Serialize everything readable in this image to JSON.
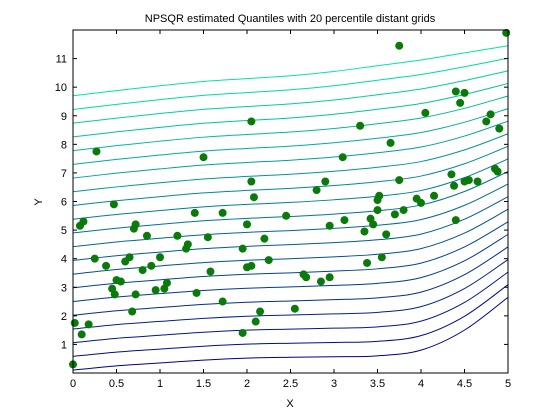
{
  "chart_data": {
    "type": "scatter",
    "title": "NPSQR estimated Quantiles with 20 percentile distant grids",
    "xlabel": "X",
    "ylabel": "Y",
    "xlim": [
      0,
      5
    ],
    "ylim": [
      0,
      12
    ],
    "xticks": [
      "0",
      "0.5",
      "1",
      "1.5",
      "2",
      "2.5",
      "3",
      "3.5",
      "4",
      "4.5",
      "5"
    ],
    "yticks": [
      "1",
      "2",
      "3",
      "4",
      "5",
      "6",
      "7",
      "8",
      "9",
      "10",
      "11"
    ],
    "grid": false,
    "legend": "none",
    "colors": {
      "points": "#0a7a0a",
      "quantile_low": "#00008b",
      "quantile_high": "#00e6a0",
      "axes": "#000000"
    },
    "quantile_curves": {
      "count": 21,
      "description_levels": "0.05 to 0.95 quantile grid",
      "x": [
        0,
        0.5,
        1,
        1.5,
        2,
        2.5,
        3,
        3.5,
        4,
        4.5,
        5
      ],
      "lowest": [
        0.1,
        0.25,
        0.35,
        0.45,
        0.52,
        0.55,
        0.57,
        0.6,
        0.8,
        1.5,
        2.65
      ],
      "highest": [
        9.7,
        9.88,
        10.05,
        10.2,
        10.3,
        10.4,
        10.55,
        10.75,
        10.95,
        11.2,
        11.45
      ]
    },
    "points": [
      [
        0.0,
        0.3
      ],
      [
        0.02,
        1.75
      ],
      [
        0.1,
        1.35
      ],
      [
        0.18,
        1.7
      ],
      [
        0.25,
        4.0
      ],
      [
        0.27,
        7.75
      ],
      [
        0.08,
        5.15
      ],
      [
        0.12,
        5.3
      ],
      [
        0.38,
        3.75
      ],
      [
        0.45,
        2.95
      ],
      [
        0.48,
        2.75
      ],
      [
        0.5,
        3.25
      ],
      [
        0.55,
        3.2
      ],
      [
        0.47,
        5.9
      ],
      [
        0.6,
        3.9
      ],
      [
        0.65,
        4.05
      ],
      [
        0.68,
        2.15
      ],
      [
        0.7,
        5.05
      ],
      [
        0.72,
        5.2
      ],
      [
        0.72,
        2.75
      ],
      [
        0.8,
        3.6
      ],
      [
        0.85,
        4.8
      ],
      [
        0.9,
        3.75
      ],
      [
        0.95,
        2.9
      ],
      [
        1.0,
        4.05
      ],
      [
        1.05,
        2.95
      ],
      [
        1.08,
        3.15
      ],
      [
        1.2,
        4.8
      ],
      [
        1.3,
        4.35
      ],
      [
        1.32,
        4.5
      ],
      [
        1.4,
        5.6
      ],
      [
        1.42,
        2.8
      ],
      [
        1.5,
        7.55
      ],
      [
        1.55,
        4.75
      ],
      [
        1.58,
        3.55
      ],
      [
        1.72,
        2.5
      ],
      [
        1.72,
        5.6
      ],
      [
        1.95,
        1.4
      ],
      [
        1.95,
        4.35
      ],
      [
        2.0,
        5.2
      ],
      [
        2.0,
        3.7
      ],
      [
        2.05,
        3.75
      ],
      [
        2.05,
        6.7
      ],
      [
        2.08,
        6.15
      ],
      [
        2.05,
        8.8
      ],
      [
        2.1,
        1.8
      ],
      [
        2.15,
        2.15
      ],
      [
        2.2,
        4.7
      ],
      [
        2.25,
        3.95
      ],
      [
        2.45,
        5.5
      ],
      [
        2.55,
        2.25
      ],
      [
        2.65,
        3.45
      ],
      [
        2.68,
        3.35
      ],
      [
        2.8,
        6.4
      ],
      [
        2.85,
        3.2
      ],
      [
        2.9,
        6.7
      ],
      [
        2.95,
        3.35
      ],
      [
        2.95,
        5.15
      ],
      [
        3.1,
        7.55
      ],
      [
        3.12,
        5.35
      ],
      [
        3.3,
        8.65
      ],
      [
        3.35,
        4.95
      ],
      [
        3.38,
        3.85
      ],
      [
        3.42,
        5.4
      ],
      [
        3.45,
        5.2
      ],
      [
        3.5,
        6.05
      ],
      [
        3.5,
        5.7
      ],
      [
        3.52,
        6.2
      ],
      [
        3.55,
        4.05
      ],
      [
        3.6,
        4.85
      ],
      [
        3.65,
        8.05
      ],
      [
        3.7,
        5.55
      ],
      [
        3.75,
        11.45
      ],
      [
        3.75,
        6.75
      ],
      [
        3.8,
        5.7
      ],
      [
        3.95,
        6.1
      ],
      [
        4.0,
        5.95
      ],
      [
        4.05,
        9.1
      ],
      [
        4.15,
        6.2
      ],
      [
        4.35,
        6.95
      ],
      [
        4.38,
        6.55
      ],
      [
        4.4,
        5.35
      ],
      [
        4.4,
        9.85
      ],
      [
        4.45,
        9.45
      ],
      [
        4.5,
        9.8
      ],
      [
        4.5,
        6.7
      ],
      [
        4.55,
        6.75
      ],
      [
        4.65,
        6.7
      ],
      [
        4.75,
        8.8
      ],
      [
        4.8,
        9.05
      ],
      [
        4.85,
        7.15
      ],
      [
        4.88,
        7.05
      ],
      [
        4.9,
        8.55
      ],
      [
        4.98,
        11.9
      ]
    ]
  }
}
